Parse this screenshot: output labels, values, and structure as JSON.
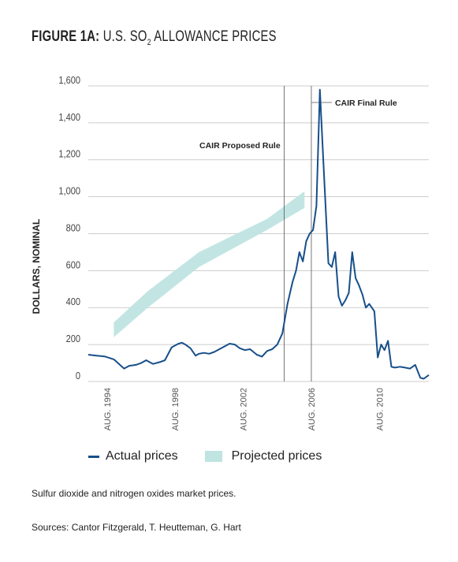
{
  "title": {
    "prefix": "FIGURE 1A:",
    "main": "U.S. SO",
    "sub": "2",
    "suffix": " ALLOWANCE PRICES"
  },
  "colors": {
    "actual": "#174f8a",
    "projected": "#bfe4e1",
    "grid": "#bdbdbd",
    "vline": "#555555"
  },
  "legend": {
    "actual": "Actual prices",
    "projected": "Projected prices"
  },
  "captions": {
    "note": "Sulfur dioxide and nitrogen oxides market prices.",
    "sources": "Sources: Cantor Fitzgerald, T. Heutteman, G. Hart"
  },
  "chart_data": {
    "type": "line",
    "ylabel": "DOLLARS, NOMINAL",
    "ylim": [
      0,
      1600
    ],
    "xlim": [
      1993.5,
      2013.5
    ],
    "y_ticks": [
      0,
      200,
      400,
      600,
      800,
      1000,
      1200,
      1400,
      1600
    ],
    "y_tick_labels": [
      "0",
      "200",
      "400",
      "600",
      "800",
      "1,000",
      "1,200",
      "1,400",
      "1,600"
    ],
    "x_ticks": [
      1994.6,
      1998.6,
      2002.6,
      2006.6,
      2010.6
    ],
    "x_tick_labels": [
      "AUG. 1994",
      "AUG. 1998",
      "AUG. 2002",
      "AUG. 2006",
      "AUG. 2010"
    ],
    "grid": "horizontal",
    "annotations": [
      {
        "label": "CAIR Proposed Rule",
        "x": 2005.0
      },
      {
        "label": "CAIR Final Rule",
        "x": 2006.6
      }
    ],
    "series": [
      {
        "name": "Actual prices",
        "x": [
          1993.5,
          1994.0,
          1994.5,
          1995.0,
          1995.3,
          1995.6,
          1995.9,
          1996.3,
          1996.6,
          1996.9,
          1997.3,
          1997.7,
          1998.0,
          1998.4,
          1998.8,
          1999.0,
          1999.2,
          1999.5,
          1999.8,
          2000.0,
          2000.3,
          2000.6,
          2000.9,
          2001.2,
          2001.5,
          2001.8,
          2002.1,
          2002.4,
          2002.7,
          2003.0,
          2003.2,
          2003.4,
          2003.7,
          2004.0,
          2004.3,
          2004.6,
          2004.9,
          2005.2,
          2005.5,
          2005.7,
          2005.9,
          2006.1,
          2006.3,
          2006.5,
          2006.7,
          2006.9,
          2007.1,
          2007.3,
          2007.6,
          2007.8,
          2008.0,
          2008.2,
          2008.4,
          2008.6,
          2008.8,
          2009.0,
          2009.2,
          2009.4,
          2009.6,
          2009.8,
          2010.0,
          2010.3,
          2010.5,
          2010.7,
          2010.9,
          2011.1,
          2011.3,
          2011.5,
          2011.8,
          2012.1,
          2012.4,
          2012.7,
          2013.0,
          2013.2,
          2013.5
        ],
        "values": [
          145,
          140,
          135,
          120,
          95,
          70,
          85,
          90,
          100,
          115,
          95,
          105,
          115,
          185,
          205,
          210,
          200,
          180,
          140,
          150,
          155,
          150,
          160,
          175,
          190,
          205,
          200,
          180,
          170,
          175,
          160,
          145,
          135,
          165,
          175,
          200,
          260,
          420,
          540,
          600,
          700,
          650,
          760,
          800,
          820,
          950,
          1580,
          1200,
          640,
          620,
          700,
          460,
          410,
          440,
          480,
          700,
          560,
          520,
          470,
          400,
          420,
          380,
          130,
          200,
          170,
          220,
          80,
          75,
          80,
          75,
          70,
          90,
          20,
          15,
          35
        ]
      },
      {
        "name": "Projected prices",
        "x": [
          1995,
          1997,
          2000,
          2002,
          2004,
          2006.2
        ],
        "low": [
          240,
          400,
          620,
          720,
          820,
          940
        ],
        "high": [
          320,
          490,
          700,
          790,
          880,
          1030
        ]
      }
    ]
  }
}
